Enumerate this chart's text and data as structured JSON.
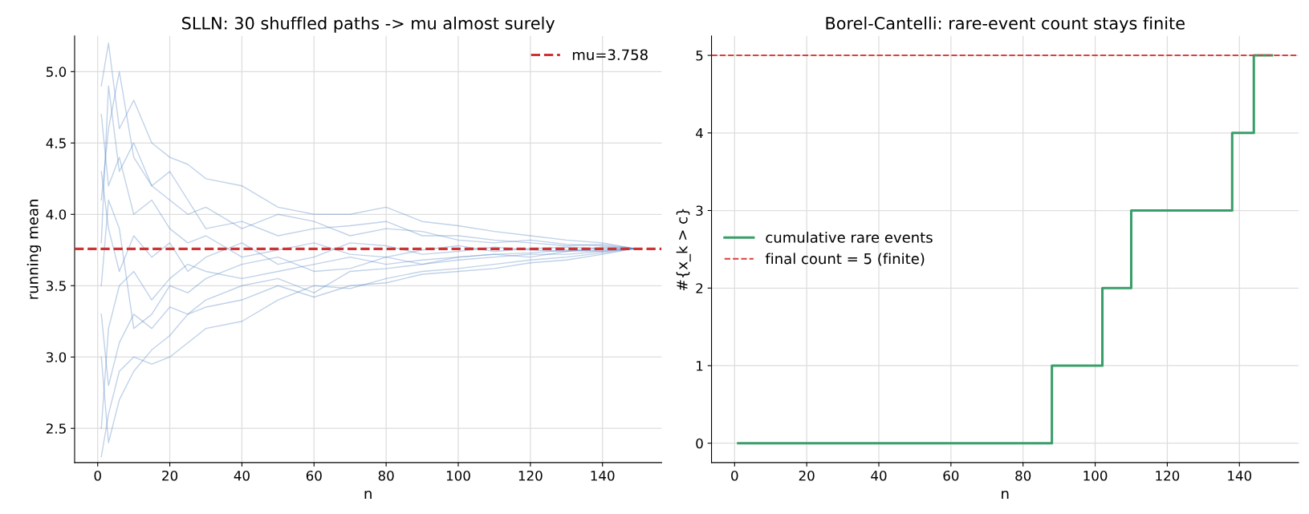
{
  "chart_data": [
    {
      "type": "line",
      "title": "SLLN: 30 shuffled paths -> mu almost surely",
      "xlabel": "n",
      "ylabel": "running mean",
      "x": [
        1,
        3,
        6,
        10,
        15,
        20,
        25,
        30,
        40,
        50,
        60,
        70,
        80,
        90,
        100,
        110,
        120,
        130,
        140,
        149
      ],
      "xlim": [
        -6.4,
        156.4
      ],
      "ylim": [
        2.26,
        5.25
      ],
      "xticks": [
        0,
        20,
        40,
        60,
        80,
        100,
        120,
        140
      ],
      "yticks": [
        {
          "value": 2.5,
          "label": "2.5"
        },
        {
          "value": 3.0,
          "label": "3.0"
        },
        {
          "value": 3.5,
          "label": "3.5"
        },
        {
          "value": 4.0,
          "label": "4.0"
        },
        {
          "value": 4.5,
          "label": "4.5"
        },
        {
          "value": 5.0,
          "label": "5.0"
        }
      ],
      "grid": true,
      "legend": "top right",
      "line_style": "solid",
      "marker": "none",
      "series": [
        {
          "color": "#4a7fc0",
          "values": [
            4.9,
            5.2,
            4.6,
            4.8,
            4.5,
            4.4,
            4.35,
            4.25,
            4.2,
            4.05,
            4.0,
            4.0,
            4.05,
            3.95,
            3.92,
            3.88,
            3.85,
            3.82,
            3.8,
            3.76
          ]
        },
        {
          "color": "#4a7fc0",
          "values": [
            2.3,
            2.6,
            2.9,
            3.0,
            2.95,
            3.0,
            3.1,
            3.2,
            3.25,
            3.4,
            3.5,
            3.48,
            3.55,
            3.6,
            3.62,
            3.65,
            3.68,
            3.7,
            3.73,
            3.76
          ]
        },
        {
          "color": "#4a7fc0",
          "values": [
            4.1,
            4.6,
            5.0,
            4.4,
            4.2,
            4.3,
            4.1,
            3.9,
            3.95,
            3.85,
            3.9,
            3.92,
            3.95,
            3.85,
            3.85,
            3.82,
            3.8,
            3.78,
            3.79,
            3.76
          ]
        },
        {
          "color": "#4a7fc0",
          "values": [
            3.3,
            2.8,
            3.1,
            3.3,
            3.2,
            3.35,
            3.3,
            3.4,
            3.5,
            3.55,
            3.45,
            3.6,
            3.62,
            3.65,
            3.7,
            3.72,
            3.7,
            3.74,
            3.75,
            3.76
          ]
        },
        {
          "color": "#4a7fc0",
          "values": [
            4.7,
            4.2,
            4.4,
            4.0,
            4.1,
            3.9,
            3.8,
            3.85,
            3.7,
            3.75,
            3.8,
            3.72,
            3.7,
            3.75,
            3.78,
            3.74,
            3.76,
            3.77,
            3.76,
            3.76
          ]
        },
        {
          "color": "#4a7fc0",
          "values": [
            2.5,
            3.2,
            3.5,
            3.6,
            3.4,
            3.55,
            3.65,
            3.6,
            3.55,
            3.6,
            3.65,
            3.7,
            3.65,
            3.68,
            3.7,
            3.72,
            3.73,
            3.75,
            3.74,
            3.76
          ]
        },
        {
          "color": "#4a7fc0",
          "values": [
            3.8,
            4.9,
            4.3,
            4.5,
            4.2,
            4.1,
            4.0,
            4.05,
            3.9,
            4.0,
            3.95,
            3.85,
            3.9,
            3.88,
            3.82,
            3.8,
            3.82,
            3.79,
            3.78,
            3.76
          ]
        },
        {
          "color": "#4a7fc0",
          "values": [
            3.0,
            2.4,
            2.7,
            2.9,
            3.05,
            3.15,
            3.3,
            3.35,
            3.4,
            3.5,
            3.42,
            3.5,
            3.52,
            3.58,
            3.6,
            3.62,
            3.66,
            3.68,
            3.72,
            3.76
          ]
        },
        {
          "color": "#4a7fc0",
          "values": [
            4.3,
            3.9,
            3.6,
            3.85,
            3.7,
            3.8,
            3.6,
            3.7,
            3.8,
            3.65,
            3.7,
            3.8,
            3.78,
            3.72,
            3.74,
            3.77,
            3.75,
            3.74,
            3.77,
            3.76
          ]
        },
        {
          "color": "#4a7fc0",
          "values": [
            3.5,
            4.1,
            3.9,
            3.2,
            3.3,
            3.5,
            3.45,
            3.55,
            3.65,
            3.7,
            3.6,
            3.62,
            3.7,
            3.65,
            3.68,
            3.7,
            3.72,
            3.72,
            3.74,
            3.76
          ]
        }
      ],
      "ref_lines": [
        {
          "axis": "y",
          "value": 3.758,
          "label": "mu=3.758",
          "color": "#cc3333",
          "line_style": "dashed"
        }
      ]
    },
    {
      "type": "step",
      "title": "Borel-Cantelli: rare-event count stays finite",
      "xlabel": "n",
      "ylabel": "#{x_k > c}",
      "xlim": [
        -6.4,
        156.4
      ],
      "ylim": [
        -0.25,
        5.25
      ],
      "xticks": [
        0,
        20,
        40,
        60,
        80,
        100,
        120,
        140
      ],
      "yticks": [
        0,
        1,
        2,
        3,
        4,
        5
      ],
      "grid": true,
      "legend": "left",
      "line_style": "solid",
      "marker": "none",
      "series": [
        {
          "name": "cumulative rare events",
          "color": "#3a9e6a",
          "x": [
            1,
            88,
            102,
            110,
            138,
            144,
            149
          ],
          "values": [
            0,
            1,
            2,
            3,
            4,
            5,
            5
          ]
        }
      ],
      "ref_lines": [
        {
          "axis": "y",
          "value": 5,
          "label": "final count = 5 (finite)",
          "color": "#d9413e",
          "line_style": "dashed"
        }
      ]
    }
  ]
}
